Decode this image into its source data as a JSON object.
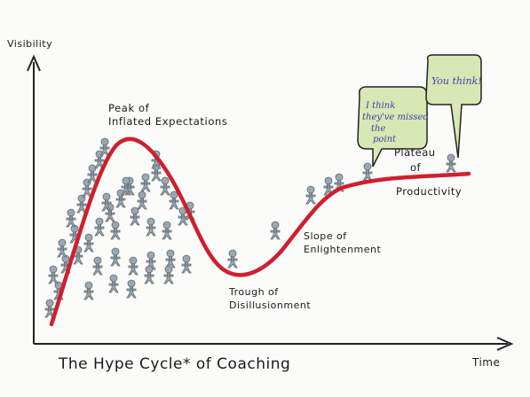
{
  "axes": {
    "y_label": "Visibility",
    "x_label": "Time"
  },
  "title": "The Hype Cycle* of Coaching",
  "phases": {
    "peak": [
      "Peak of",
      "Inflated Expectations"
    ],
    "trough": [
      "Trough of",
      "Disillusionment"
    ],
    "slope": [
      "Slope of",
      "Enlightenment"
    ],
    "plateau": [
      "Plateau",
      "of",
      "Productivity"
    ]
  },
  "bubbles": {
    "left": [
      "I think",
      "they've missed",
      "the",
      "point"
    ],
    "right": "You think!"
  },
  "colors": {
    "curve": "#cf1f2e",
    "axis": "#222222",
    "figure": "#9aa8b3",
    "bubble": "#d8e8b4",
    "ink": "#1a1a1a"
  },
  "icons": {
    "person": "stick-figure-icon"
  }
}
